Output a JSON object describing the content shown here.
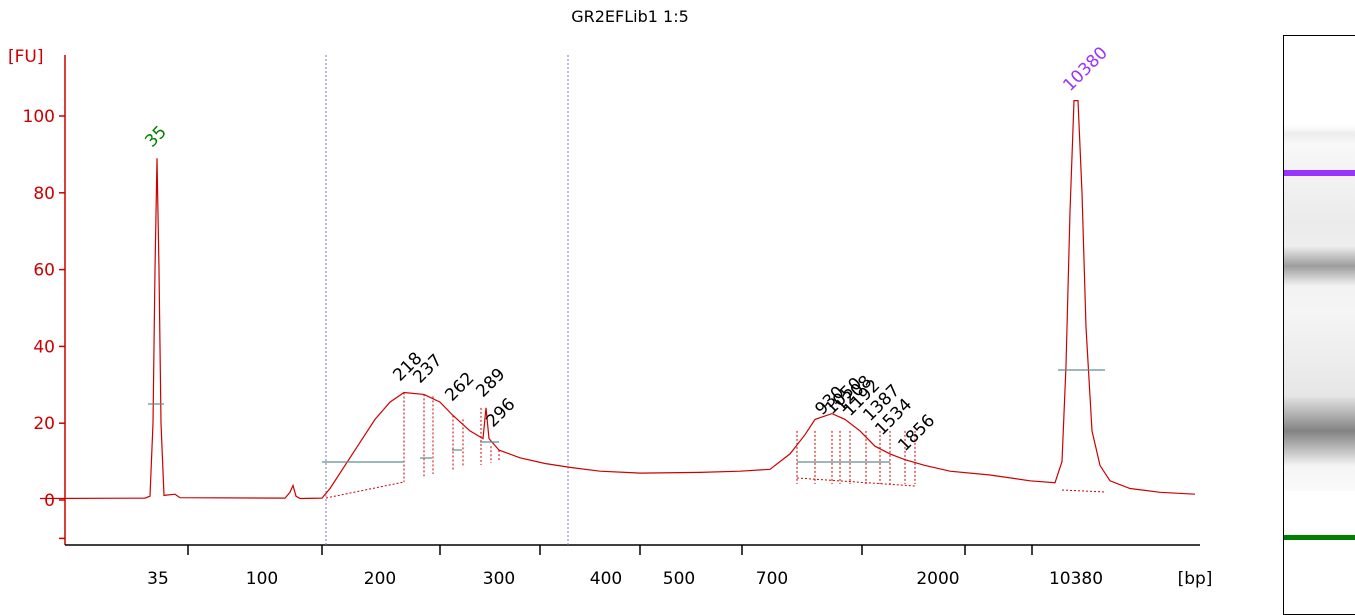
{
  "chart_data": {
    "type": "line",
    "title": "GR2EFLib1 1:5",
    "ylabel": "[FU]",
    "xlabel": "[bp]",
    "ylim": [
      -10,
      115
    ],
    "yticks": [
      0,
      20,
      40,
      60,
      80,
      100
    ],
    "xticks": [
      "35",
      "100",
      "200",
      "300",
      "400",
      "500",
      "700",
      "2000",
      "10380"
    ],
    "series": [
      {
        "values_note": "",
        "x": [
          "35",
          "35",
          "35",
          "100",
          "150",
          "200",
          "218",
          "237",
          "262",
          "289",
          "296",
          "300",
          "400",
          "500",
          "700",
          "930",
          "1050",
          "1208",
          "1192",
          "1387",
          "1534",
          "1856",
          "2000",
          "10380",
          "10380",
          "10380"
        ],
        "y": [
          1,
          89,
          1,
          4,
          1,
          20,
          28,
          27,
          22,
          17,
          14,
          11,
          7,
          7,
          8,
          21,
          22,
          19,
          18,
          15,
          12,
          10,
          7,
          104,
          10,
          1
        ]
      }
    ],
    "peak_labels": [
      {
        "text": "35",
        "color": "#008000"
      },
      {
        "text": "10380",
        "color": "#9933ff"
      },
      {
        "text": "218",
        "color": "#000000"
      },
      {
        "text": "237",
        "color": "#000000"
      },
      {
        "text": "262",
        "color": "#000000"
      },
      {
        "text": "289",
        "color": "#000000"
      },
      {
        "text": "296",
        "color": "#000000"
      },
      {
        "text": "930",
        "color": "#000000"
      },
      {
        "text": "1050",
        "color": "#000000"
      },
      {
        "text": "1208",
        "color": "#000000"
      },
      {
        "text": "1192",
        "color": "#000000"
      },
      {
        "text": "1387",
        "color": "#000000"
      },
      {
        "text": "1534",
        "color": "#000000"
      },
      {
        "text": "1856",
        "color": "#000000"
      }
    ],
    "colors": {
      "trace": "#cc0000",
      "axis": "#cc0000",
      "marker_lower": "#008000",
      "marker_upper": "#9933ff",
      "region_line": "#7777cc",
      "baseline": "#5f8f8f"
    },
    "grid": false
  },
  "gel": {
    "upper_marker_color": "#9933ff",
    "lower_marker_color": "#008000"
  }
}
